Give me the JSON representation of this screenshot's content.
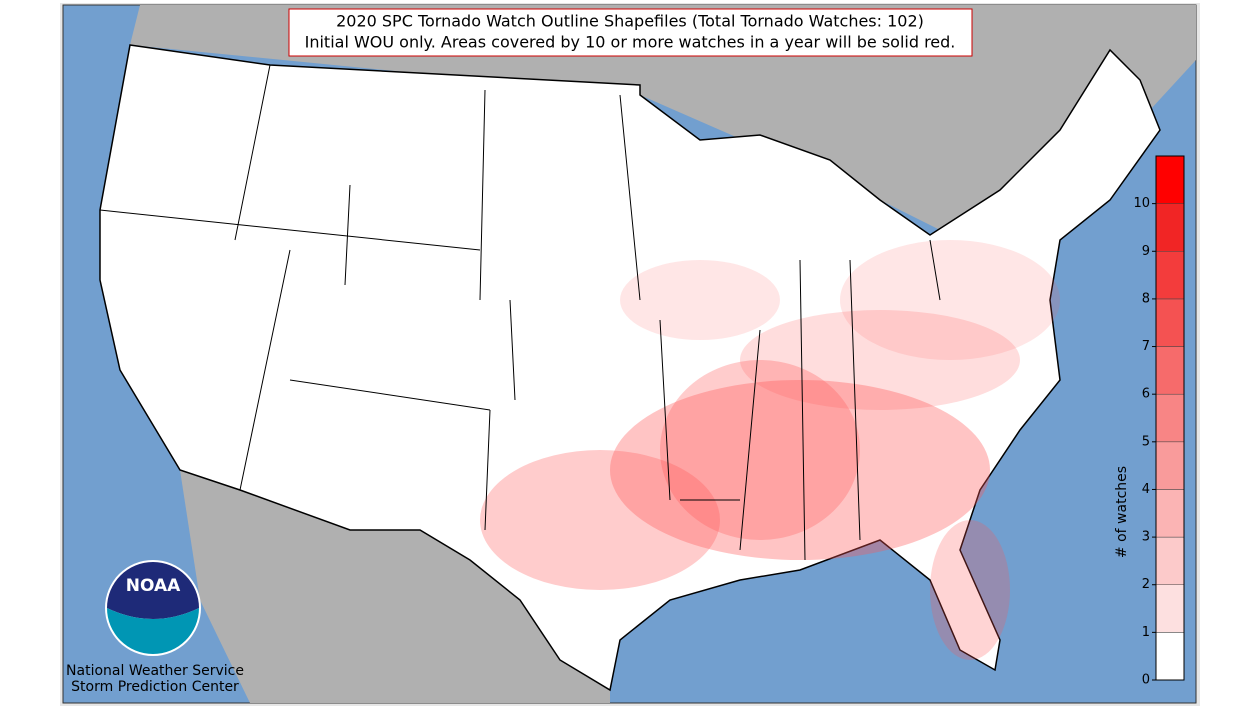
{
  "title": [
    "2020 SPC Tornado Watch Outline Shapefiles (Total Tornado Watches: 102)",
    "Initial WOU only. Areas covered by 10 or more watches in a year will be solid red."
  ],
  "colorbar": {
    "label": "# of watches",
    "lim": [
      0,
      11
    ],
    "ticks": [
      0,
      1,
      2,
      3,
      4,
      5,
      6,
      7,
      8,
      9,
      10
    ],
    "colors": [
      "#ffffff",
      "#fde0e0",
      "#fccaca",
      "#fbb4b4",
      "#f99b9b",
      "#f88585",
      "#f66b6b",
      "#f45252",
      "#f33c3c",
      "#f12525",
      "#ff0000"
    ]
  },
  "logo": {
    "text": "NOAA",
    "credit": [
      "National Weather Service",
      "Storm Prediction Center"
    ]
  }
}
